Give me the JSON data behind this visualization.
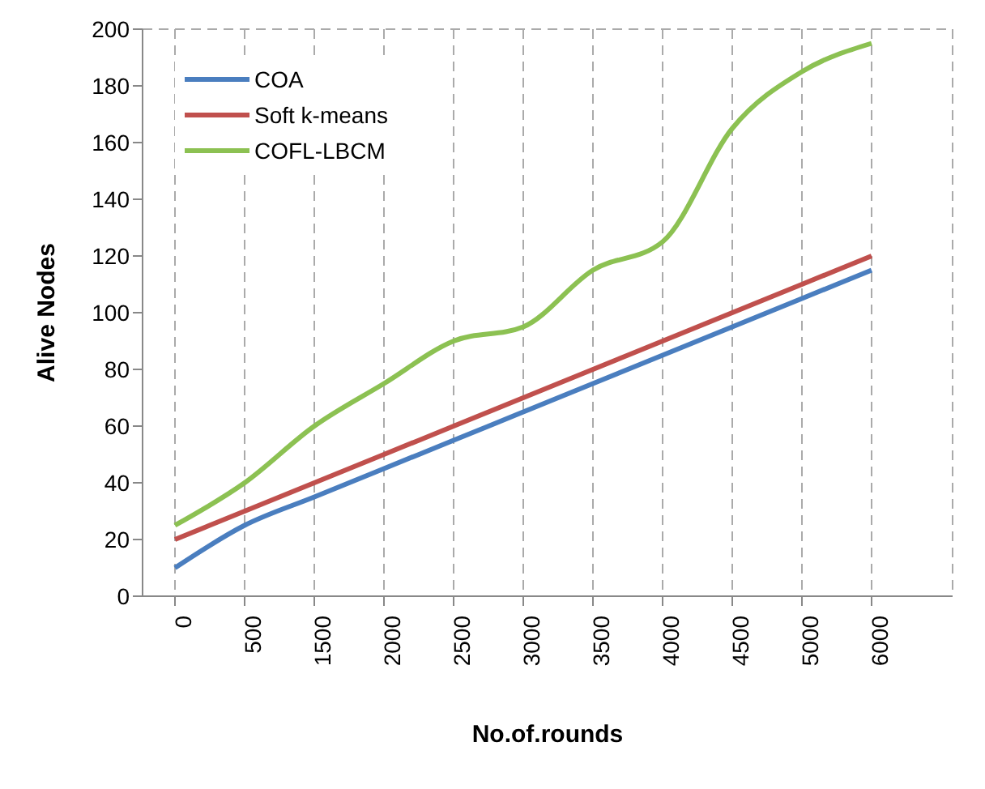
{
  "chart_data": {
    "type": "line",
    "xlabel": "No.of.rounds",
    "ylabel": "Alive Nodes",
    "categories": [
      "0",
      "500",
      "1500",
      "2000",
      "2500",
      "3000",
      "3500",
      "4000",
      "4500",
      "5000",
      "6000"
    ],
    "series": [
      {
        "name": "COA",
        "color": "#4a7ebf",
        "values": [
          10,
          25,
          35,
          45,
          55,
          65,
          75,
          85,
          95,
          105,
          115
        ]
      },
      {
        "name": "Soft k-means",
        "color": "#c0504d",
        "values": [
          20,
          30,
          40,
          50,
          60,
          70,
          80,
          90,
          100,
          110,
          120
        ]
      },
      {
        "name": "COFL-LBCM",
        "color": "#8cc152",
        "values": [
          25,
          40,
          60,
          75,
          90,
          95,
          115,
          125,
          165,
          185,
          195
        ]
      }
    ],
    "ylim": [
      0,
      200
    ],
    "yticks": [
      0,
      20,
      40,
      60,
      80,
      100,
      120,
      140,
      160,
      180,
      200
    ],
    "grid": true,
    "legend": "top left",
    "marker": "none",
    "line_style": "solid"
  }
}
